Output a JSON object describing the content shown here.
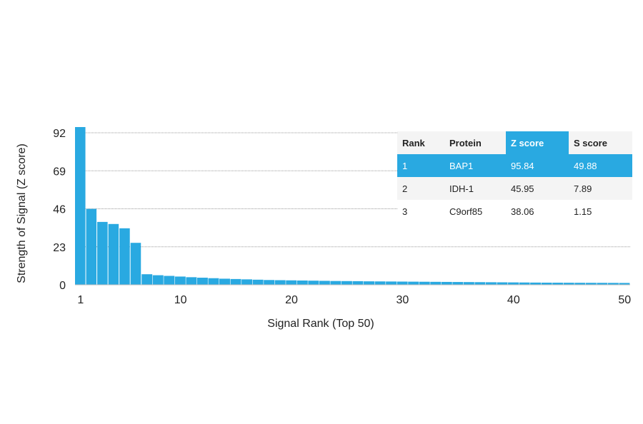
{
  "chart_data": {
    "type": "bar",
    "xlabel": "Signal Rank (Top 50)",
    "ylabel": "Strength of Signal (Z score)",
    "x_ticks": [
      1,
      10,
      20,
      30,
      40,
      50
    ],
    "y_ticks": [
      0,
      23,
      46,
      69,
      92
    ],
    "ylim": [
      0,
      92
    ],
    "xlim": [
      0.5,
      50.5
    ],
    "grid": true,
    "bar_color": "#29a9e1",
    "x": [
      1,
      2,
      3,
      4,
      5,
      6,
      7,
      8,
      9,
      10,
      11,
      12,
      13,
      14,
      15,
      16,
      17,
      18,
      19,
      20,
      21,
      22,
      23,
      24,
      25,
      26,
      27,
      28,
      29,
      30,
      31,
      32,
      33,
      34,
      35,
      36,
      37,
      38,
      39,
      40,
      41,
      42,
      43,
      44,
      45,
      46,
      47,
      48,
      49,
      50
    ],
    "values": [
      95.84,
      45.95,
      38.06,
      36.8,
      34.2,
      25.4,
      6.4,
      5.8,
      5.4,
      5.0,
      4.6,
      4.3,
      4.0,
      3.7,
      3.5,
      3.3,
      3.1,
      2.9,
      2.8,
      2.7,
      2.6,
      2.5,
      2.4,
      2.3,
      2.25,
      2.2,
      2.1,
      2.05,
      2.0,
      1.95,
      1.9,
      1.85,
      1.8,
      1.75,
      1.7,
      1.65,
      1.6,
      1.55,
      1.5,
      1.45,
      1.4,
      1.35,
      1.3,
      1.28,
      1.25,
      1.22,
      1.2,
      1.18,
      1.15,
      1.12
    ]
  },
  "table": {
    "headers": [
      "Rank",
      "Protein",
      "Z score",
      "S score"
    ],
    "rows": [
      [
        "1",
        "BAP1",
        "95.84",
        "49.88"
      ],
      [
        "2",
        "IDH-1",
        "45.95",
        "7.89"
      ],
      [
        "3",
        "C9orf85",
        "38.06",
        "1.15"
      ]
    ],
    "highlight_color": "#29a9e1",
    "highlight_column": 2,
    "highlight_row": 0
  }
}
